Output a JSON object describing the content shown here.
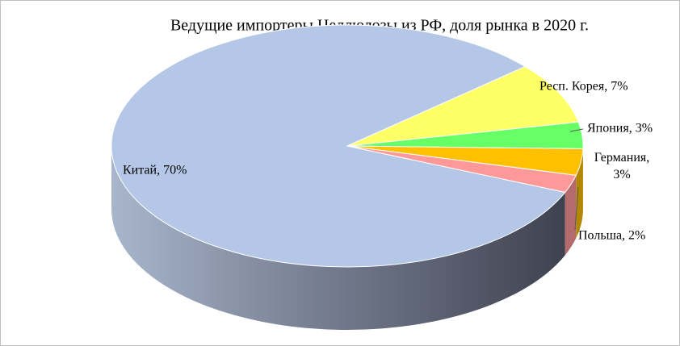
{
  "chart_data": {
    "type": "pie3d",
    "title": "Ведущие импортеры Целлюлозы из РФ, доля рынка в 2020 г.",
    "values": [
      70,
      7,
      3,
      3,
      2
    ],
    "value_labels": [
      "Китай, 70%",
      "Респ. Корея, 7%",
      "Япония, 3%",
      "Германия, 3%",
      "Польша, 2%"
    ],
    "colors": [
      "#b4c7e7",
      "#ffff66",
      "#66ff66",
      "#ffc000",
      "#ff9999"
    ]
  }
}
